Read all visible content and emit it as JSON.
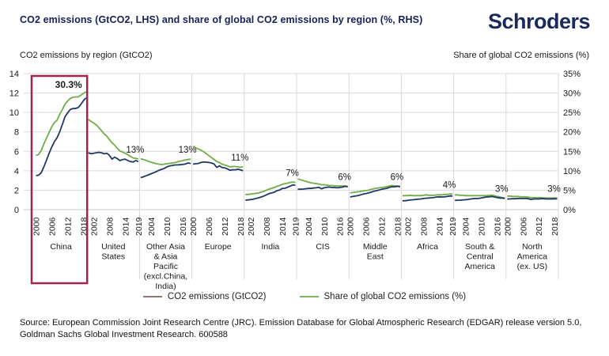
{
  "header": {
    "title": "CO2 emissions (GtCO2, LHS) and share of global CO2 emissions by region (%, RHS)",
    "logo": "Schroders"
  },
  "source_lines": [
    "Source: European Commission Joint Research Centre (JRC). Emission Database for Global Atmospheric Research (EDGAR) release version 5.0,",
    "Goldman Sachs Global Investment Research. 600588"
  ],
  "chart_data": {
    "type": "line",
    "title": "CO2 emissions (GtCO2, LHS) and share of global CO2 emissions by region (%, RHS)",
    "lhs_axis": {
      "label": "CO2 emissions by region (GtCO2)",
      "min": 0,
      "max": 14,
      "ticks": [
        0,
        2,
        4,
        6,
        8,
        10,
        12,
        14
      ]
    },
    "rhs_axis": {
      "label": "Share of global CO2 emissions (%)",
      "min": 0,
      "max": 35,
      "tick_labels": [
        "0%",
        "5%",
        "10%",
        "15%",
        "20%",
        "25%",
        "30%",
        "35%"
      ]
    },
    "years": [
      2000,
      2001,
      2002,
      2003,
      2004,
      2005,
      2006,
      2007,
      2008,
      2009,
      2010,
      2011,
      2012,
      2013,
      2014,
      2015,
      2016,
      2017,
      2018,
      2019
    ],
    "colors": {
      "emissions_line": "#1f3864",
      "share_line": "#70ad47",
      "grid": "#d9d9d9",
      "highlight_box": "#9d2453",
      "text": "#1a1a1a"
    },
    "legend": [
      {
        "label": "CO2 emissions (GtCO2)",
        "swatch_color": "#8d7878"
      },
      {
        "label": "Share of global CO2 emissions (%)",
        "swatch_color": "#83b561"
      }
    ],
    "regions": [
      {
        "name": "China",
        "name_lines": [
          "China"
        ],
        "highlight": true,
        "end_label": "30.3%",
        "end_label_bold": true,
        "x_ticks": [
          2000,
          2006,
          2012,
          2018
        ],
        "emissions_gt": [
          3.5,
          3.55,
          3.8,
          4.4,
          5.1,
          5.8,
          6.45,
          7.0,
          7.4,
          8.0,
          8.75,
          9.55,
          9.95,
          10.3,
          10.4,
          10.4,
          10.5,
          10.8,
          11.2,
          11.5
        ],
        "share_pct": [
          13.9,
          14.2,
          15.2,
          16.9,
          18.4,
          19.9,
          21.3,
          22.4,
          23.0,
          24.5,
          25.7,
          27.1,
          27.9,
          28.6,
          28.9,
          29.0,
          29.0,
          29.4,
          29.9,
          30.3
        ]
      },
      {
        "name": "United States",
        "name_lines": [
          "United",
          "States"
        ],
        "highlight": false,
        "end_label": "13%",
        "end_label_bold": false,
        "x_ticks": [
          2002,
          2008,
          2014,
          2019
        ],
        "emissions_gt": [
          5.85,
          5.75,
          5.8,
          5.85,
          5.9,
          5.85,
          5.75,
          5.8,
          5.6,
          5.2,
          5.4,
          5.25,
          5.05,
          5.15,
          5.2,
          5.05,
          4.95,
          4.9,
          5.05,
          4.95
        ],
        "share_pct": [
          23.2,
          22.7,
          22.3,
          21.8,
          21.1,
          20.3,
          19.5,
          18.9,
          18.0,
          17.2,
          16.6,
          15.8,
          15.1,
          14.8,
          14.5,
          14.1,
          13.7,
          13.3,
          13.2,
          13.0
        ]
      },
      {
        "name": "Other Asia & Asia Pacific (excl.China, India)",
        "name_lines": [
          "Other Asia",
          "& Asia",
          "Pacific",
          "(excl.China,",
          "India)"
        ],
        "highlight": false,
        "end_label": "13%",
        "end_label_bold": false,
        "x_ticks": [
          2004,
          2010,
          2016
        ],
        "emissions_gt": [
          3.3,
          3.38,
          3.48,
          3.58,
          3.7,
          3.8,
          3.92,
          4.05,
          4.15,
          4.25,
          4.4,
          4.5,
          4.55,
          4.6,
          4.6,
          4.62,
          4.65,
          4.7,
          4.8,
          4.75
        ],
        "share_pct": [
          13.1,
          12.9,
          12.7,
          12.4,
          12.2,
          12.0,
          11.8,
          11.7,
          11.6,
          11.7,
          11.8,
          11.9,
          12.0,
          12.1,
          12.3,
          12.5,
          12.6,
          12.8,
          12.9,
          13.0
        ]
      },
      {
        "name": "Europe",
        "name_lines": [
          "Europe"
        ],
        "highlight": false,
        "end_label": "11%",
        "end_label_bold": false,
        "x_ticks": [
          2000,
          2006,
          2012,
          2018
        ],
        "emissions_gt": [
          4.7,
          4.72,
          4.75,
          4.85,
          4.9,
          4.88,
          4.85,
          4.8,
          4.7,
          4.35,
          4.5,
          4.35,
          4.3,
          4.2,
          4.05,
          4.1,
          4.1,
          4.15,
          4.1,
          4.0
        ],
        "share_pct": [
          16.3,
          15.9,
          15.6,
          15.3,
          14.9,
          14.4,
          13.9,
          13.4,
          12.9,
          12.4,
          12.1,
          11.7,
          11.5,
          11.3,
          11.0,
          11.1,
          11.1,
          11.0,
          10.9,
          11.0
        ]
      },
      {
        "name": "India",
        "name_lines": [
          "India"
        ],
        "highlight": false,
        "end_label": "7%",
        "end_label_bold": false,
        "x_ticks": [
          2002,
          2008,
          2014,
          2019
        ],
        "emissions_gt": [
          0.98,
          1.0,
          1.03,
          1.08,
          1.15,
          1.22,
          1.3,
          1.4,
          1.52,
          1.65,
          1.72,
          1.8,
          1.95,
          2.02,
          2.18,
          2.2,
          2.3,
          2.42,
          2.55,
          2.5
        ],
        "share_pct": [
          3.9,
          3.9,
          4.0,
          4.1,
          4.2,
          4.3,
          4.5,
          4.7,
          5.0,
          5.3,
          5.5,
          5.7,
          6.0,
          6.2,
          6.5,
          6.7,
          6.8,
          7.0,
          7.1,
          7.0
        ]
      },
      {
        "name": "CIS",
        "name_lines": [
          "CIS"
        ],
        "highlight": false,
        "end_label": "6%",
        "end_label_bold": false,
        "x_ticks": [
          2004,
          2010,
          2016
        ],
        "emissions_gt": [
          2.1,
          2.1,
          2.12,
          2.15,
          2.18,
          2.18,
          2.22,
          2.25,
          2.3,
          2.15,
          2.25,
          2.3,
          2.32,
          2.28,
          2.28,
          2.25,
          2.28,
          2.32,
          2.4,
          2.35
        ],
        "share_pct": [
          7.9,
          7.7,
          7.5,
          7.3,
          7.1,
          6.9,
          6.8,
          6.7,
          6.6,
          6.4,
          6.4,
          6.3,
          6.2,
          6.2,
          6.1,
          6.1,
          6.1,
          6.1,
          6.1,
          6.0
        ]
      },
      {
        "name": "Middle East",
        "name_lines": [
          "Middle",
          "East"
        ],
        "highlight": false,
        "end_label": "6%",
        "end_label_bold": false,
        "x_ticks": [
          2000,
          2006,
          2012,
          2018
        ],
        "emissions_gt": [
          1.3,
          1.35,
          1.4,
          1.45,
          1.52,
          1.6,
          1.65,
          1.72,
          1.8,
          1.9,
          1.95,
          2.02,
          2.1,
          2.15,
          2.2,
          2.3,
          2.35,
          2.35,
          2.4,
          2.35
        ],
        "share_pct": [
          4.3,
          4.4,
          4.5,
          4.6,
          4.7,
          4.8,
          4.9,
          5.0,
          5.2,
          5.4,
          5.5,
          5.6,
          5.7,
          5.8,
          5.9,
          6.1,
          6.2,
          6.1,
          6.1,
          6.0
        ]
      },
      {
        "name": "Africa",
        "name_lines": [
          "Africa"
        ],
        "highlight": false,
        "end_label": "4%",
        "end_label_bold": false,
        "x_ticks": [
          2002,
          2008,
          2014,
          2019
        ],
        "emissions_gt": [
          0.9,
          0.92,
          0.95,
          1.0,
          1.02,
          1.05,
          1.08,
          1.1,
          1.15,
          1.18,
          1.2,
          1.22,
          1.25,
          1.3,
          1.32,
          1.3,
          1.32,
          1.35,
          1.4,
          1.4
        ],
        "share_pct": [
          3.6,
          3.6,
          3.6,
          3.7,
          3.6,
          3.6,
          3.6,
          3.6,
          3.7,
          3.8,
          3.7,
          3.7,
          3.7,
          3.8,
          3.8,
          3.8,
          3.9,
          3.9,
          4.0,
          4.0
        ]
      },
      {
        "name": "South & Central America",
        "name_lines": [
          "South &",
          "Central",
          "America"
        ],
        "highlight": false,
        "end_label": "3%",
        "end_label_bold": false,
        "x_ticks": [
          2004,
          2010,
          2016
        ],
        "emissions_gt": [
          0.95,
          0.97,
          0.98,
          1.0,
          1.02,
          1.05,
          1.1,
          1.12,
          1.15,
          1.15,
          1.2,
          1.25,
          1.3,
          1.32,
          1.35,
          1.3,
          1.25,
          1.2,
          1.2,
          1.15
        ],
        "share_pct": [
          3.8,
          3.8,
          3.7,
          3.7,
          3.6,
          3.6,
          3.6,
          3.6,
          3.6,
          3.6,
          3.6,
          3.6,
          3.6,
          3.7,
          3.7,
          3.6,
          3.4,
          3.3,
          3.1,
          3.0
        ]
      },
      {
        "name": "North America (ex. US)",
        "name_lines": [
          "North",
          "America",
          "(ex. US)"
        ],
        "highlight": false,
        "end_label": "3%",
        "end_label_bold": false,
        "x_ticks": [
          2000,
          2006,
          2012,
          2018
        ],
        "emissions_gt": [
          1.1,
          1.1,
          1.12,
          1.12,
          1.15,
          1.15,
          1.15,
          1.15,
          1.12,
          1.05,
          1.1,
          1.1,
          1.1,
          1.12,
          1.12,
          1.1,
          1.1,
          1.1,
          1.12,
          1.1
        ],
        "share_pct": [
          3.5,
          3.5,
          3.4,
          3.4,
          3.4,
          3.3,
          3.3,
          3.3,
          3.2,
          3.1,
          3.1,
          3.1,
          3.1,
          3.1,
          3.0,
          3.0,
          3.0,
          3.0,
          3.0,
          3.0
        ]
      }
    ]
  }
}
